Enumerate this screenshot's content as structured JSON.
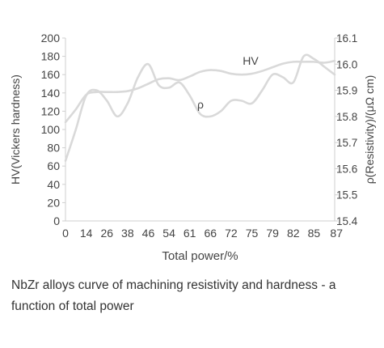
{
  "chart_data": {
    "type": "line",
    "xlabel": "Total power/%",
    "ylabel_left": "HV(Vickers hardness)",
    "ylabel_right": "ρ(Resistivity)/(μΩ cm)",
    "categories": [
      "0",
      "14",
      "26",
      "38",
      "46",
      "54",
      "61",
      "66",
      "72",
      "75",
      "79",
      "82",
      "85",
      "87"
    ],
    "x_positions": [
      0,
      1,
      2,
      3,
      4,
      5,
      6,
      7,
      8,
      9,
      10,
      11,
      12,
      13
    ],
    "xlim": [
      0,
      13
    ],
    "ylim_left": [
      0,
      200
    ],
    "yticks_left": [
      0,
      20,
      40,
      60,
      80,
      100,
      120,
      140,
      160,
      180,
      200
    ],
    "ylim_right": [
      15.4,
      16.1
    ],
    "yticks_right": [
      15.4,
      15.5,
      15.6,
      15.7,
      15.8,
      15.9,
      16.0,
      16.1
    ],
    "series": [
      {
        "name": "HV",
        "axis": "left",
        "color": "#d9d9d9",
        "x": [
          0,
          0.5,
          1.0,
          1.5,
          2.0,
          2.5,
          3.0,
          3.5,
          4.0,
          4.5,
          5.0,
          5.5,
          6.0,
          6.5,
          7.0,
          7.5,
          8.0,
          8.5,
          9.0,
          9.5,
          10.0,
          10.5,
          11.0,
          11.5,
          12.0,
          12.5,
          13.0
        ],
        "values": [
          108,
          122,
          138,
          141,
          141,
          141,
          142,
          145,
          150,
          155,
          156,
          154,
          158,
          163,
          165,
          164,
          161,
          160,
          161,
          164,
          168,
          172,
          174,
          174,
          174,
          173,
          175
        ]
      },
      {
        "name": "ρ",
        "axis": "right",
        "color": "#d9d9d9",
        "x": [
          0,
          0.5,
          1.0,
          1.5,
          2.0,
          2.5,
          3.0,
          3.5,
          4.0,
          4.5,
          5.0,
          5.5,
          6.0,
          6.5,
          7.0,
          7.5,
          8.0,
          8.5,
          9.0,
          9.5,
          10.0,
          10.5,
          11.0,
          11.5,
          12.0,
          12.5,
          13.0
        ],
        "values": [
          15.63,
          15.75,
          15.88,
          15.9,
          15.86,
          15.8,
          15.85,
          15.95,
          16.0,
          15.92,
          15.91,
          15.93,
          15.88,
          15.81,
          15.8,
          15.82,
          15.86,
          15.86,
          15.85,
          15.9,
          15.96,
          15.95,
          15.93,
          16.03,
          16.02,
          15.99,
          15.96
        ]
      }
    ],
    "annotations": [
      {
        "text": "HV",
        "series": "HV"
      },
      {
        "text": "ρ",
        "series": "ρ"
      }
    ]
  },
  "caption": "NbZr alloys curve of machining resistivity and hardness - a function of total power"
}
